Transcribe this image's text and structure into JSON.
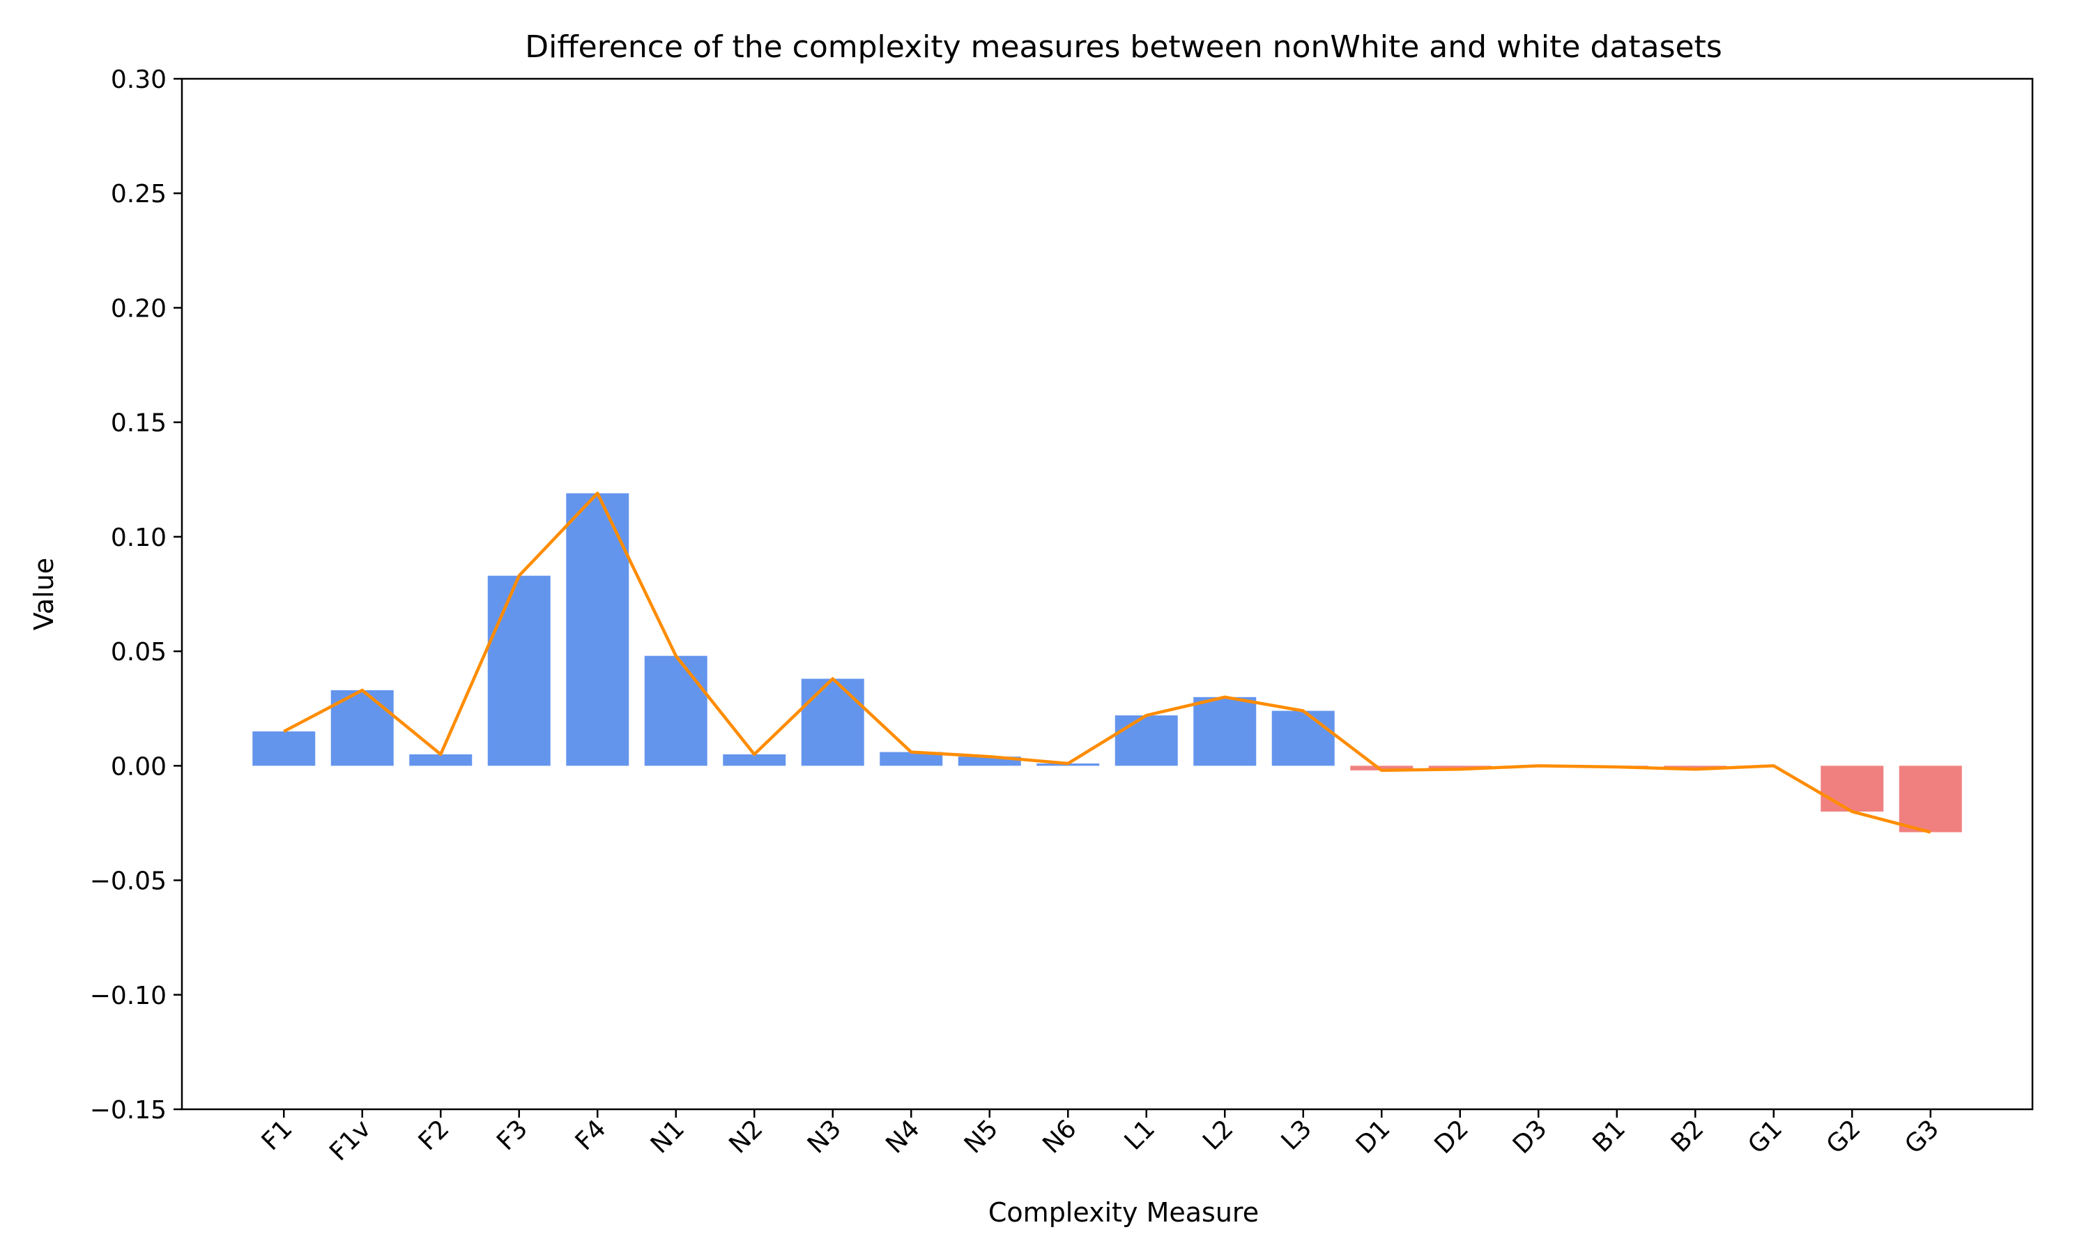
{
  "chart_data": {
    "type": "bar",
    "title": "Difference of the complexity measures between nonWhite and white datasets",
    "xlabel": "Complexity Measure",
    "ylabel": "Value",
    "ylim": [
      -0.15,
      0.3
    ],
    "yticks": [
      -0.15,
      -0.1,
      -0.05,
      0.0,
      0.05,
      0.1,
      0.15,
      0.2,
      0.25,
      0.3
    ],
    "ytick_labels": [
      "−0.15",
      "−0.10",
      "−0.05",
      "0.00",
      "0.05",
      "0.10",
      "0.15",
      "0.20",
      "0.25",
      "0.30"
    ],
    "grid": false,
    "categories": [
      "F1",
      "F1v",
      "F2",
      "F3",
      "F4",
      "N1",
      "N2",
      "N3",
      "N4",
      "N5",
      "N6",
      "L1",
      "L2",
      "L3",
      "D1",
      "D2",
      "D3",
      "B1",
      "B2",
      "G1",
      "G2",
      "G3"
    ],
    "values": [
      0.015,
      0.033,
      0.005,
      0.083,
      0.119,
      0.048,
      0.005,
      0.038,
      0.006,
      0.004,
      0.001,
      0.022,
      0.03,
      0.024,
      -0.002,
      -0.0015,
      0.0,
      -0.0005,
      -0.0015,
      0.0,
      -0.02,
      -0.029
    ],
    "colors": {
      "positive_bar": "#6495ED",
      "negative_bar": "#F08080",
      "line": "#FF8C00",
      "axis": "#000000"
    },
    "overlay_line": {
      "type": "line",
      "follows": "values"
    }
  }
}
